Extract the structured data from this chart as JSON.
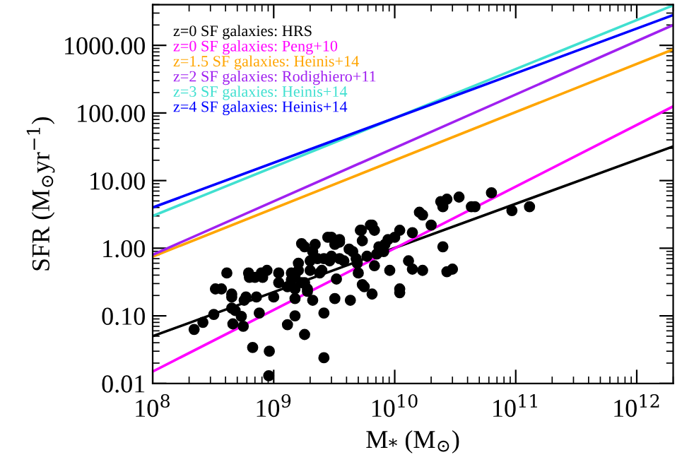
{
  "chart_data": {
    "type": "line",
    "xlabel": "M$_{*}$ (M$_{⊙}$)",
    "ylabel": "SFR (M$_{⊙}$yr$^{−1}$)",
    "log": "xy",
    "xlim": [
      100000000.0,
      2000000000000.0
    ],
    "ylim": [
      0.01,
      4000
    ],
    "xticks": [
      {
        "value": 100000000.0,
        "label": "10$^{8}$"
      },
      {
        "value": 1000000000.0,
        "label": "10$^{9}$"
      },
      {
        "value": 10000000000.0,
        "label": "10$^{10}$"
      },
      {
        "value": 100000000000.0,
        "label": "10$^{11}$"
      },
      {
        "value": 1000000000000.0,
        "label": "10$^{12}$"
      }
    ],
    "yticks": [
      0.01,
      {
        "value": 0.1,
        "label": "0.10"
      },
      {
        "value": 1,
        "label": "1.00"
      },
      {
        "value": 10,
        "label": "10.00"
      },
      {
        "value": 100,
        "label": "100.00"
      },
      {
        "value": 1000,
        "label": "1000.00"
      }
    ],
    "grid": false,
    "legend": "top left",
    "series": [
      {
        "type": "scatter",
        "color": "#000000",
        "marker": "circle",
        "x": [
          220000000.0,
          260000000.0,
          320000000.0,
          330000000.0,
          370000000.0,
          410000000.0,
          450000000.0,
          450000000.0,
          450000000.0,
          460000000.0,
          480000000.0,
          540000000.0,
          560000000.0,
          570000000.0,
          590000000.0,
          620000000.0,
          630000000.0,
          670000000.0,
          700000000.0,
          720000000.0,
          760000000.0,
          790000000.0,
          810000000.0,
          880000000.0,
          910000000.0,
          920000000.0,
          1000000000.0,
          1100000000.0,
          1100000000.0,
          1300000000.0,
          1300000000.0,
          1400000000.0,
          1400000000.0,
          1500000000.0,
          1500000000.0,
          1500000000.0,
          1500000000.0,
          1600000000.0,
          1600000000.0,
          1700000000.0,
          1700000000.0,
          1800000000.0,
          1800000000.0,
          1800000000.0,
          1900000000.0,
          1900000000.0,
          2000000000.0,
          2000000000.0,
          2100000000.0,
          2100000000.0,
          2200000000.0,
          2300000000.0,
          2400000000.0,
          2500000000.0,
          2600000000.0,
          2600000000.0,
          2600000000.0,
          2800000000.0,
          2900000000.0,
          3000000000.0,
          3200000000.0,
          3200000000.0,
          3300000000.0,
          3500000000.0,
          3500000000.0,
          3800000000.0,
          4200000000.0,
          4300000000.0,
          4500000000.0,
          4800000000.0,
          4900000000.0,
          5000000000.0,
          5200000000.0,
          5400000000.0,
          5400000000.0,
          5600000000.0,
          5900000000.0,
          6300000000.0,
          6500000000.0,
          6800000000.0,
          6800000000.0,
          7100000000.0,
          7400000000.0,
          8100000000.0,
          8300000000.0,
          8800000000.0,
          9100000000.0,
          10000000000.0,
          11000000000.0,
          11000000000.0,
          11000000000.0,
          14000000000.0,
          13000000000.0,
          14000000000.0,
          17000000000.0,
          20000000000.0,
          25000000000.0,
          27000000000.0,
          30000000000.0,
          3000000000.0,
          3500000000.0,
          5300000000.0,
          6500000000.0,
          16000000000.0,
          17000000000.0,
          24000000000.0,
          25000000000.0,
          27000000000.0,
          34000000000.0,
          43000000000.0,
          46000000000.0,
          63000000000.0,
          93000000000.0,
          130000000000.0
        ],
        "values": [
          0.063,
          0.08,
          0.105,
          0.25,
          0.25,
          0.43,
          0.21,
          0.13,
          0.19,
          0.076,
          0.12,
          0.098,
          0.07,
          0.17,
          0.19,
          0.43,
          0.37,
          0.034,
          0.37,
          0.19,
          0.11,
          0.43,
          0.37,
          0.47,
          0.013,
          0.03,
          0.19,
          0.43,
          0.31,
          0.074,
          0.27,
          0.34,
          0.43,
          0.25,
          0.18,
          0.1,
          0.37,
          0.47,
          0.6,
          1.17,
          0.31,
          0.31,
          0.053,
          1.05,
          0.23,
          0.25,
          0.65,
          0.47,
          0.17,
          0.89,
          1.14,
          0.7,
          0.43,
          0.47,
          0.024,
          0.11,
          0.7,
          1.45,
          0.65,
          0.76,
          0.18,
          1.14,
          0.35,
          1.23,
          0.7,
          0.65,
          0.97,
          0.17,
          0.89,
          0.7,
          0.6,
          0.43,
          1.84,
          0.29,
          1.29,
          0.27,
          0.76,
          2.2,
          0.21,
          0.55,
          1.84,
          0.82,
          1.05,
          0.89,
          1.14,
          1.34,
          0.47,
          1.45,
          1.84,
          0.25,
          0.22,
          1.7,
          0.65,
          0.49,
          0.47,
          2.2,
          1.05,
          0.45,
          0.49,
          1.45,
          1.34,
          1.84,
          2.2,
          3.4,
          3.1,
          4.9,
          4.1,
          5.3,
          5.7,
          4.1,
          4.1,
          6.6,
          3.6,
          4.1
        ]
      },
      {
        "name": "z=0 SF galaxies: HRS",
        "color": "#000000",
        "x": [
          100000000.0,
          2000000000000.0
        ],
        "values": [
          0.05,
          32
        ]
      },
      {
        "name": "z=0 SF galaxies: Peng+10",
        "color": "#ff00ff",
        "x": [
          100000000.0,
          2000000000000.0
        ],
        "values": [
          0.015,
          125
        ]
      },
      {
        "name": "z=1.5 SF galaxies: Heinis+14",
        "color": "#ffa500",
        "x": [
          100000000.0,
          2000000000000.0
        ],
        "values": [
          0.75,
          870
        ]
      },
      {
        "name": "z=2 SF galaxies: Rodighiero+11",
        "color": "#a020f0",
        "x": [
          100000000.0,
          2000000000000.0
        ],
        "values": [
          0.8,
          2000
        ]
      },
      {
        "name": "z=3 SF galaxies: Heinis+14",
        "color": "#40e0d0",
        "x": [
          100000000.0,
          2000000000000.0
        ],
        "values": [
          3.0,
          3900
        ]
      },
      {
        "name": "z=4 SF galaxies: Heinis+14",
        "color": "#0000ff",
        "x": [
          100000000.0,
          2000000000000.0
        ],
        "values": [
          4.0,
          2800
        ]
      }
    ]
  }
}
